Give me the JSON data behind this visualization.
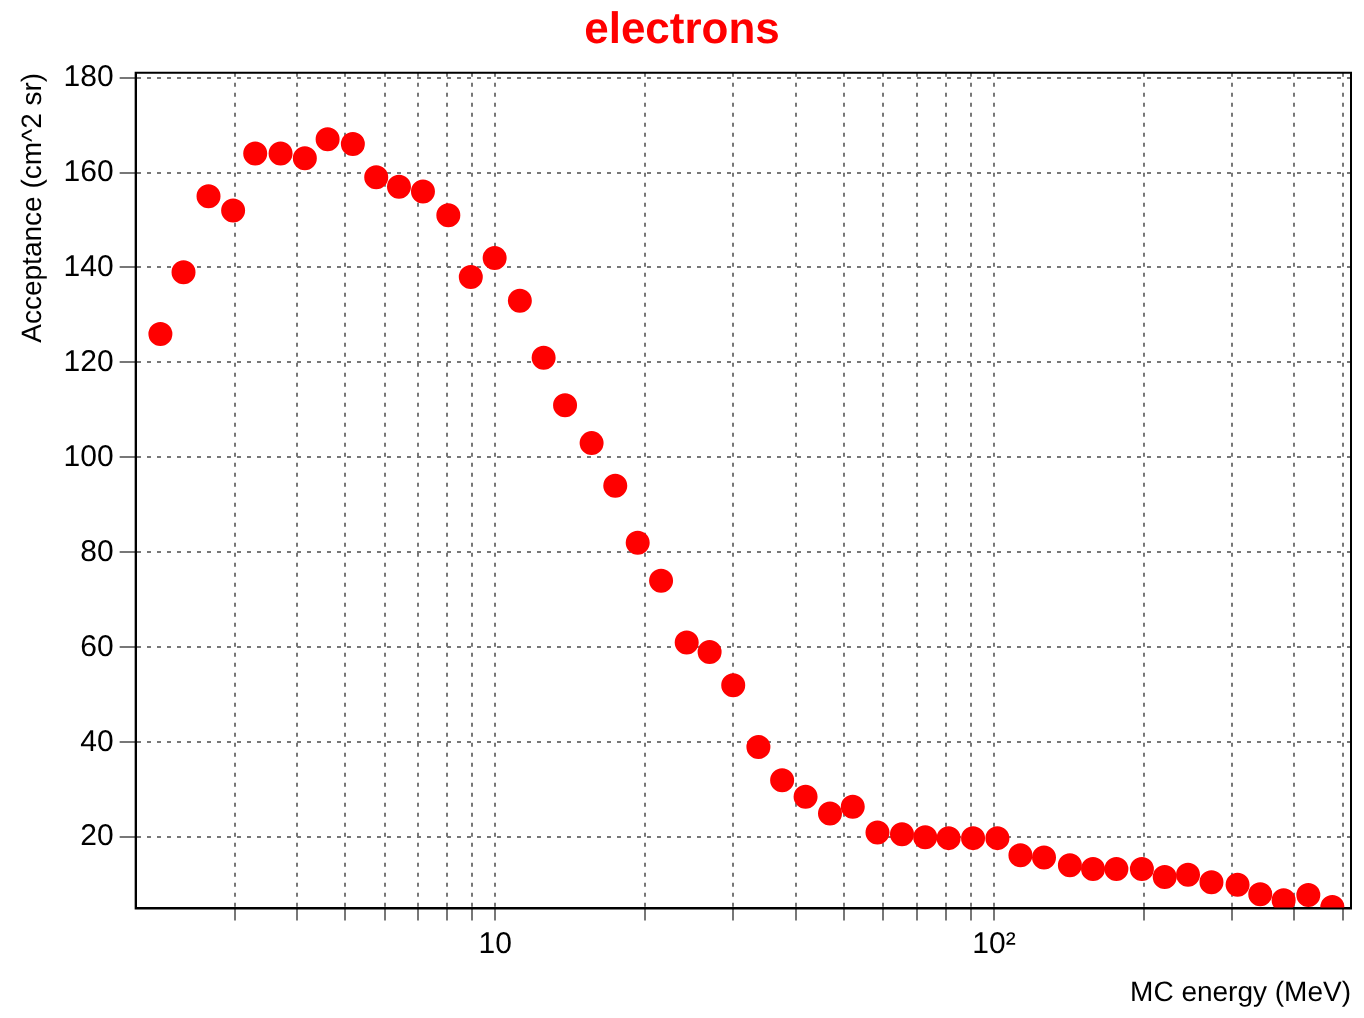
{
  "chart_data": {
    "type": "scatter",
    "title": "electrons",
    "xlabel": "MC energy (MeV)",
    "ylabel": "Acceptance (cm^2 sr)",
    "log": "x",
    "grid": true,
    "marker": "circle",
    "legend": false,
    "xlim": [
      1.9,
      520
    ],
    "ylim": [
      5,
      181
    ],
    "xticks": [
      {
        "value": 3,
        "label": null
      },
      {
        "value": 4,
        "label": null
      },
      {
        "value": 5,
        "label": null
      },
      {
        "value": 6,
        "label": null
      },
      {
        "value": 7,
        "label": null
      },
      {
        "value": 8,
        "label": null
      },
      {
        "value": 9,
        "label": null
      },
      {
        "value": 10,
        "label": "10"
      },
      {
        "value": 20,
        "label": null
      },
      {
        "value": 30,
        "label": null
      },
      {
        "value": 40,
        "label": null
      },
      {
        "value": 50,
        "label": null
      },
      {
        "value": 60,
        "label": null
      },
      {
        "value": 70,
        "label": null
      },
      {
        "value": 80,
        "label": null
      },
      {
        "value": 90,
        "label": null
      },
      {
        "value": 100,
        "label": "10²"
      },
      {
        "value": 200,
        "label": null
      },
      {
        "value": 300,
        "label": null
      },
      {
        "value": 400,
        "label": null
      },
      {
        "value": 500,
        "label": null
      }
    ],
    "yticks": [
      20,
      40,
      60,
      80,
      100,
      120,
      140,
      160,
      180
    ],
    "series": [
      {
        "color": "#ff0000",
        "x": [
          2.13,
          2.37,
          2.66,
          2.98,
          3.3,
          3.71,
          4.15,
          4.61,
          5.18,
          5.77,
          6.41,
          7.16,
          8.05,
          8.93,
          9.97,
          11.2,
          12.5,
          13.8,
          15.6,
          17.4,
          19.3,
          21.5,
          24.2,
          26.9,
          30,
          33.7,
          37.6,
          41.9,
          46.9,
          52.1,
          58.4,
          65.4,
          72.8,
          81.1,
          90.8,
          101.6,
          113,
          126,
          142,
          158,
          176,
          198,
          220,
          245,
          273,
          308,
          342,
          381,
          427,
          477
        ],
        "values": [
          126,
          139,
          155,
          152,
          164,
          164,
          163,
          167,
          166,
          159,
          157,
          156,
          151,
          138,
          142,
          133,
          121,
          111,
          103,
          94,
          82,
          74,
          61,
          59,
          52,
          39,
          32,
          28.5,
          25,
          26.4,
          21,
          20.6,
          20,
          19.8,
          19.8,
          19.8,
          16.2,
          15.7,
          14.1,
          13.3,
          13.3,
          13.3,
          11.6,
          12.1,
          10.5,
          10,
          8,
          6.7,
          7.8,
          5.3
        ]
      }
    ]
  }
}
